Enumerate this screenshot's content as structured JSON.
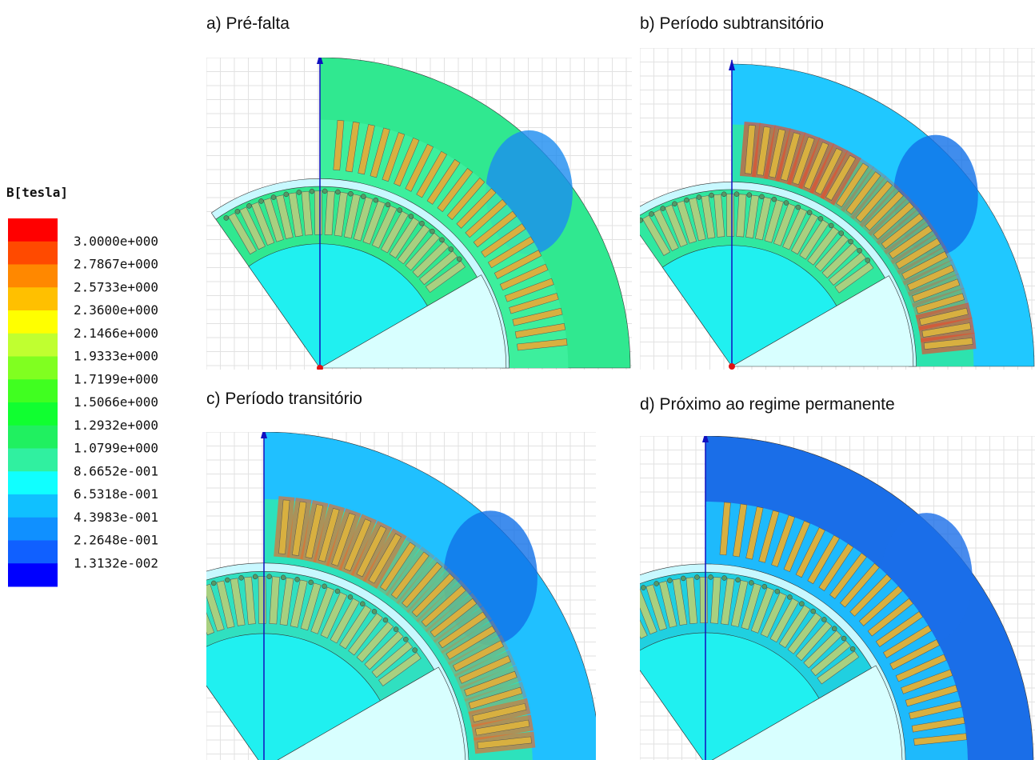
{
  "legend": {
    "title": "B[tesla]",
    "labels": [
      "3.0000e+000",
      "2.7867e+000",
      "2.5733e+000",
      "2.3600e+000",
      "2.1466e+000",
      "1.9333e+000",
      "1.7199e+000",
      "1.5066e+000",
      "1.2932e+000",
      "1.0799e+000",
      "8.6652e-001",
      "6.5318e-001",
      "4.3983e-001",
      "2.2648e-001",
      "1.3132e-002"
    ],
    "colors": [
      "#ff0000",
      "#ff4a00",
      "#ff8800",
      "#ffc000",
      "#ffff00",
      "#c0ff30",
      "#80ff20",
      "#40ff20",
      "#10ff30",
      "#20f060",
      "#30f0a0",
      "#10ffff",
      "#10c0ff",
      "#1090ff",
      "#1060ff",
      "#0000ff"
    ]
  },
  "panels": [
    {
      "title": "a) Pré-falta"
    },
    {
      "title": "b) Período subtransitório"
    },
    {
      "title": "c) Período transitório"
    },
    {
      "title": "d) Próximo ao regime permanente"
    }
  ]
}
